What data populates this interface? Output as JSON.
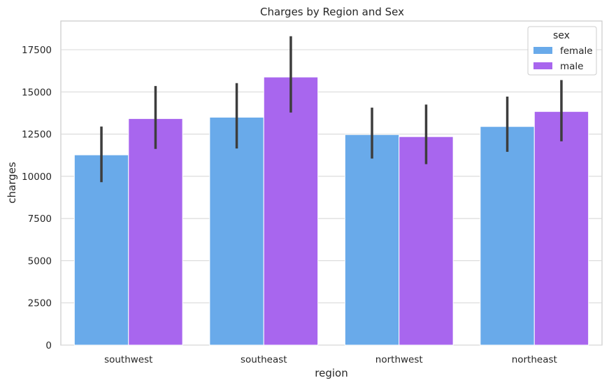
{
  "chart_data": {
    "type": "bar",
    "title": "Charges by Region and Sex",
    "xlabel": "region",
    "ylabel": "charges",
    "categories": [
      "southwest",
      "southeast",
      "northwest",
      "northeast"
    ],
    "ylim": [
      0,
      19200
    ],
    "yticks": [
      0,
      2500,
      5000,
      7500,
      10000,
      12500,
      15000,
      17500
    ],
    "grid": "horizontal",
    "legend": {
      "title": "sex",
      "placement": "top-right"
    },
    "series": [
      {
        "name": "female",
        "color": "#69aaea",
        "values": [
          11270,
          13500,
          12470,
          12950
        ],
        "ci_low": [
          9650,
          11650,
          11050,
          11450
        ],
        "ci_high": [
          12950,
          15520,
          14070,
          14720
        ]
      },
      {
        "name": "male",
        "color": "#a866ee",
        "values": [
          13420,
          15880,
          12350,
          13840
        ],
        "ci_low": [
          11620,
          13780,
          10720,
          12070
        ],
        "ci_high": [
          15350,
          18300,
          14250,
          15700
        ]
      }
    ]
  }
}
